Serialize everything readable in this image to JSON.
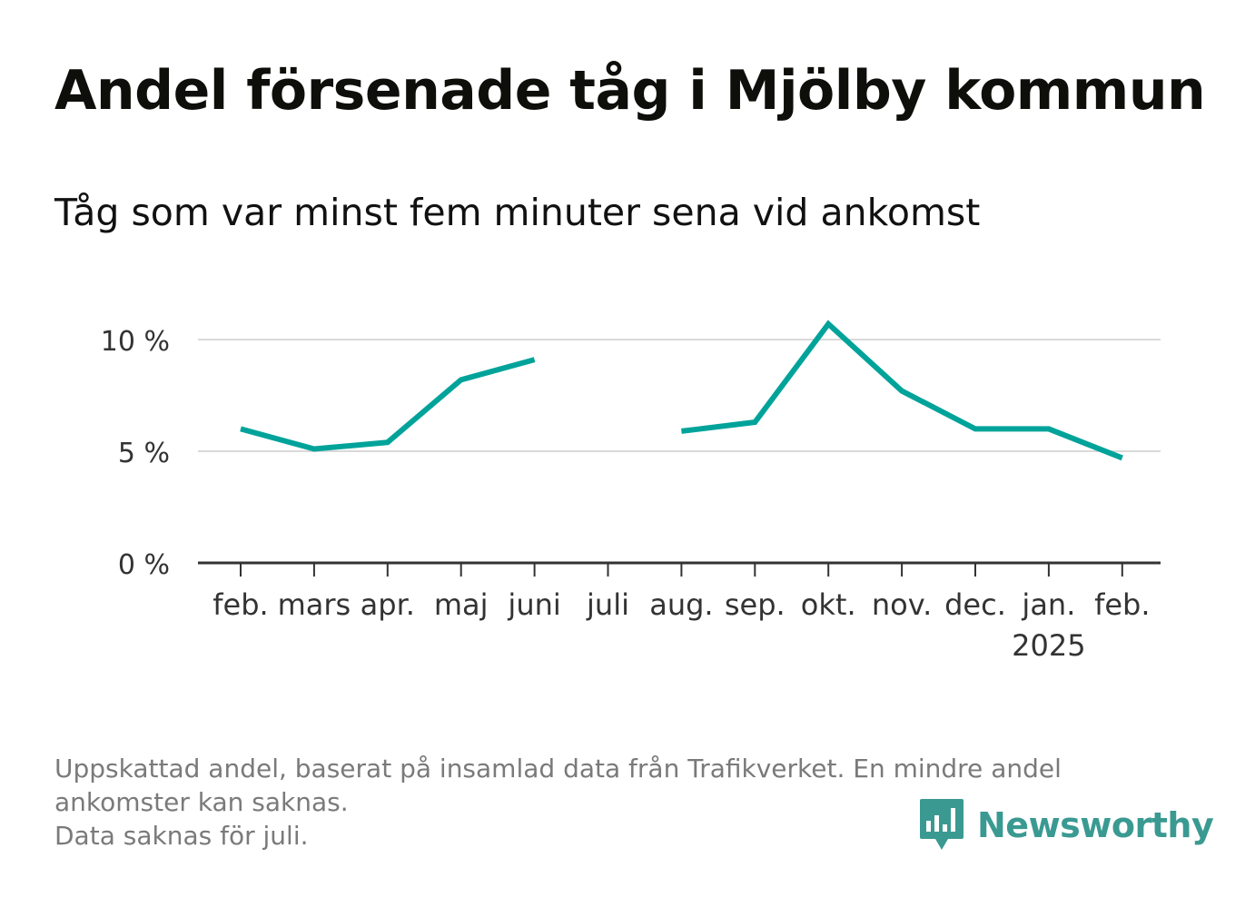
{
  "title": "Andel försenade tåg i Mjölby kommun",
  "subtitle": "Tåg som var minst fem minuter sena vid ankomst",
  "footnote": {
    "line1": "Uppskattad andel, baserat på insamlad data från Trafikverket. En mindre andel",
    "line2": "ankomster kan saknas.",
    "line3": "Data saknas för juli."
  },
  "brand": {
    "name": "Newsworthy",
    "logo_icon": "bar-chart-speech-bubble-icon"
  },
  "colors": {
    "line": "#00a39a",
    "grid": "#d9d9d9",
    "axis": "#333333",
    "brand": "#3a9a92"
  },
  "chart_data": {
    "type": "line",
    "categories": [
      "feb.",
      "mars",
      "apr.",
      "maj",
      "juni",
      "juli",
      "aug.",
      "sep.",
      "okt.",
      "nov.",
      "dec.",
      "jan.",
      "feb."
    ],
    "category_sublabels": [
      "",
      "",
      "",
      "",
      "",
      "",
      "",
      "",
      "",
      "",
      "",
      "2025",
      ""
    ],
    "series": [
      {
        "values": [
          6.0,
          5.1,
          5.4,
          8.2,
          9.1,
          null,
          5.9,
          6.3,
          10.7,
          7.7,
          6.0,
          6.0,
          4.7
        ]
      }
    ],
    "y_ticks": [
      0,
      5,
      10
    ],
    "y_tick_labels": [
      "0 %",
      "5 %",
      "10 %"
    ],
    "ylim": [
      0,
      11
    ],
    "unit": "%",
    "grid": true,
    "legend": "none"
  }
}
